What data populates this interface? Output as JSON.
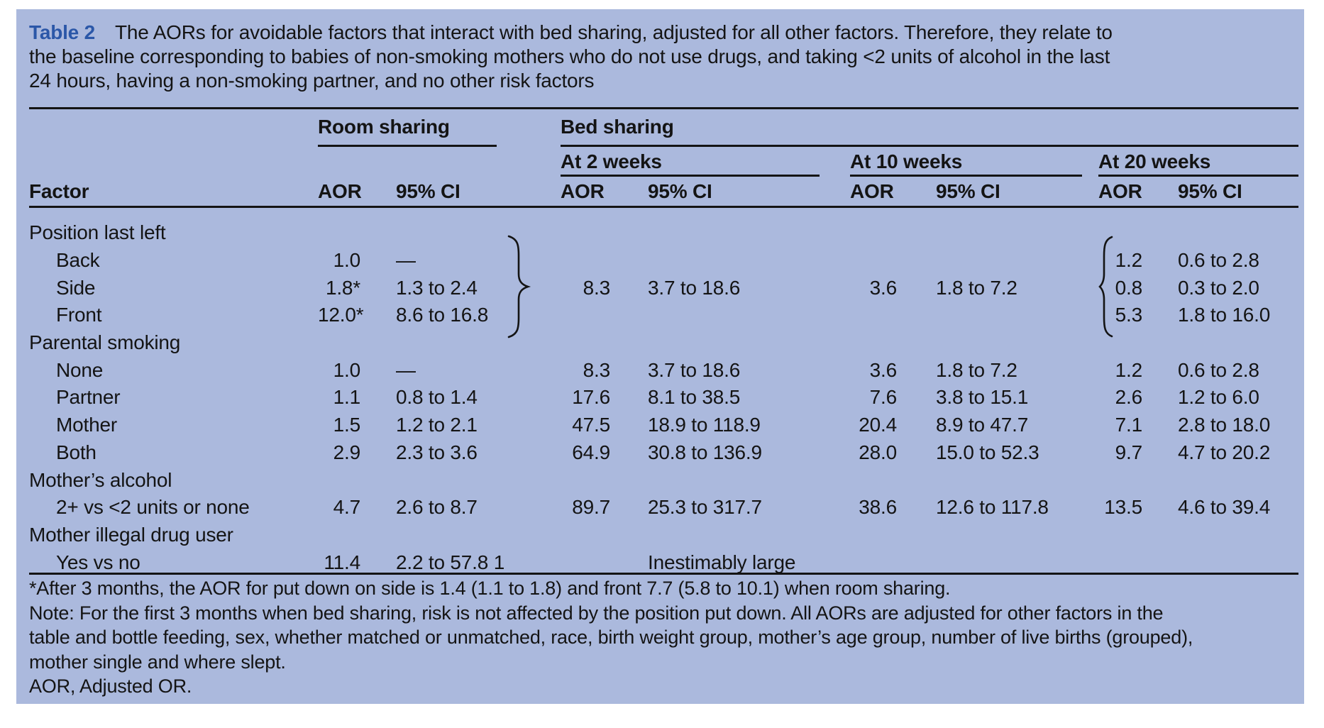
{
  "title": {
    "label": "Table 2",
    "lines": [
      "The AORs for avoidable factors that interact with bed sharing, adjusted for all other factors. Therefore, they relate to",
      "the baseline corresponding to babies of non-smoking mothers who do not use drugs, and taking <2 units of alcohol in the last",
      "24 hours, having a non-smoking partner, and no other risk factors"
    ]
  },
  "table": {
    "group_headers": {
      "room": "Room sharing",
      "bed": "Bed sharing"
    },
    "subgroup_headers": [
      "At 2 weeks",
      "At 10 weeks",
      "At 20 weeks"
    ],
    "col_headers": {
      "factor": "Factor",
      "aor": "AOR",
      "ci": "95% CI"
    },
    "rows": [
      {
        "factor": "Position last left",
        "indent": false,
        "room_aor": "",
        "room_ci": "",
        "w2_aor": "",
        "w2_ci": "",
        "w10_aor": "",
        "w10_ci": "",
        "w20_aor": "",
        "w20_ci": ""
      },
      {
        "factor": "Back",
        "indent": true,
        "room_aor": "1.0",
        "room_ci": "—",
        "w2_aor": "",
        "w2_ci": "",
        "w10_aor": "",
        "w10_ci": "",
        "w20_aor": "1.2",
        "w20_ci": "0.6 to 2.8"
      },
      {
        "factor": "Side",
        "indent": true,
        "room_aor": "1.8*",
        "room_ci": "1.3 to 2.4",
        "w2_aor": "8.3",
        "w2_ci": "3.7 to 18.6",
        "w10_aor": "3.6",
        "w10_ci": "1.8 to 7.2",
        "w20_aor": "0.8",
        "w20_ci": "0.3 to 2.0"
      },
      {
        "factor": "Front",
        "indent": true,
        "room_aor": "12.0*",
        "room_ci": "8.6 to 16.8",
        "w2_aor": "",
        "w2_ci": "",
        "w10_aor": "",
        "w10_ci": "",
        "w20_aor": "5.3",
        "w20_ci": "1.8 to 16.0"
      },
      {
        "factor": "Parental smoking",
        "indent": false,
        "room_aor": "",
        "room_ci": "",
        "w2_aor": "",
        "w2_ci": "",
        "w10_aor": "",
        "w10_ci": "",
        "w20_aor": "",
        "w20_ci": ""
      },
      {
        "factor": "None",
        "indent": true,
        "room_aor": "1.0",
        "room_ci": "—",
        "w2_aor": "8.3",
        "w2_ci": "3.7 to 18.6",
        "w10_aor": "3.6",
        "w10_ci": "1.8 to 7.2",
        "w20_aor": "1.2",
        "w20_ci": "0.6 to 2.8"
      },
      {
        "factor": "Partner",
        "indent": true,
        "room_aor": "1.1",
        "room_ci": "0.8 to 1.4",
        "w2_aor": "17.6",
        "w2_ci": "8.1 to 38.5",
        "w10_aor": "7.6",
        "w10_ci": "3.8 to 15.1",
        "w20_aor": "2.6",
        "w20_ci": "1.2 to 6.0"
      },
      {
        "factor": "Mother",
        "indent": true,
        "room_aor": "1.5",
        "room_ci": "1.2 to 2.1",
        "w2_aor": "47.5",
        "w2_ci": "18.9 to 118.9",
        "w10_aor": "20.4",
        "w10_ci": "8.9 to 47.7",
        "w20_aor": "7.1",
        "w20_ci": "2.8 to 18.0"
      },
      {
        "factor": "Both",
        "indent": true,
        "room_aor": "2.9",
        "room_ci": "2.3 to 3.6",
        "w2_aor": "64.9",
        "w2_ci": "30.8 to 136.9",
        "w10_aor": "28.0",
        "w10_ci": "15.0 to 52.3",
        "w20_aor": "9.7",
        "w20_ci": "4.7 to 20.2"
      },
      {
        "factor": "Mother’s alcohol",
        "indent": false,
        "room_aor": "",
        "room_ci": "",
        "w2_aor": "",
        "w2_ci": "",
        "w10_aor": "",
        "w10_ci": "",
        "w20_aor": "",
        "w20_ci": ""
      },
      {
        "factor": "2+ vs <2 units or none",
        "indent": true,
        "room_aor": "4.7",
        "room_ci": "2.6 to 8.7",
        "w2_aor": "89.7",
        "w2_ci": "25.3 to 317.7",
        "w10_aor": "38.6",
        "w10_ci": "12.6 to 117.8",
        "w20_aor": "13.5",
        "w20_ci": "4.6 to 39.4"
      },
      {
        "factor": "Mother illegal drug user",
        "indent": false,
        "room_aor": "",
        "room_ci": "",
        "w2_aor": "",
        "w2_ci": "",
        "w10_aor": "",
        "w10_ci": "",
        "w20_aor": "",
        "w20_ci": ""
      },
      {
        "factor": "Yes vs no",
        "indent": true,
        "room_aor": "11.4",
        "room_ci": "2.2 to 57.8 1",
        "w2_aor": "",
        "w2_ci": "Inestimably large",
        "w10_aor": "",
        "w10_ci": "",
        "w20_aor": "",
        "w20_ci": ""
      }
    ]
  },
  "footnote_lines": [
    "*After 3 months, the AOR for put down on side is 1.4 (1.1 to 1.8) and front 7.7 (5.8 to 10.1) when room sharing.",
    "Note: For the first 3 months when bed sharing, risk is not affected by the position put down. All AORs are adjusted for other factors in the",
    "table and bottle feeding, sex, whether matched or unmatched, race, birth weight group, mother’s age group, number of live births (grouped),",
    "mother single and where slept.",
    "AOR, Adjusted OR."
  ],
  "colors": {
    "panel_bg": "#abb9dd",
    "title_accent": "#2b57a8",
    "text": "#141414"
  }
}
